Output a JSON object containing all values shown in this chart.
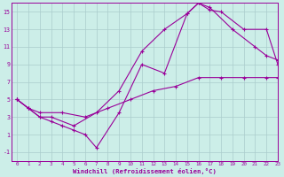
{
  "xlabel": "Windchill (Refroidissement éolien,°C)",
  "bg_color": "#cceee8",
  "grid_color": "#aacccc",
  "line_color": "#990099",
  "xlim": [
    -0.5,
    23
  ],
  "ylim": [
    -2,
    16
  ],
  "xticks": [
    0,
    1,
    2,
    3,
    4,
    5,
    6,
    7,
    8,
    9,
    10,
    11,
    12,
    13,
    14,
    15,
    16,
    17,
    18,
    19,
    20,
    21,
    22,
    23
  ],
  "yticks": [
    -1,
    1,
    3,
    5,
    7,
    9,
    11,
    13,
    15
  ],
  "line1_x": [
    0,
    1,
    2,
    3,
    5,
    7,
    9,
    11,
    13,
    15,
    16,
    17,
    19,
    21,
    22,
    23
  ],
  "line1_y": [
    5,
    4,
    3,
    3,
    2,
    3.5,
    6,
    10.5,
    13,
    14.8,
    16,
    15.5,
    13,
    11,
    10,
    9.5
  ],
  "line2_x": [
    0,
    1,
    2,
    3,
    4,
    5,
    6,
    7,
    9,
    11,
    13,
    15,
    16,
    17,
    18,
    20,
    22,
    23
  ],
  "line2_y": [
    5,
    4,
    3,
    2.5,
    2,
    1.5,
    1,
    -0.5,
    3.5,
    9,
    8,
    14.8,
    16,
    15.2,
    15,
    13,
    13,
    9
  ],
  "line3_x": [
    0,
    1,
    2,
    4,
    6,
    8,
    10,
    12,
    14,
    16,
    18,
    20,
    22,
    23
  ],
  "line3_y": [
    5,
    4,
    3.5,
    3.5,
    3,
    4,
    5,
    6,
    6.5,
    7.5,
    7.5,
    7.5,
    7.5,
    7.5
  ]
}
